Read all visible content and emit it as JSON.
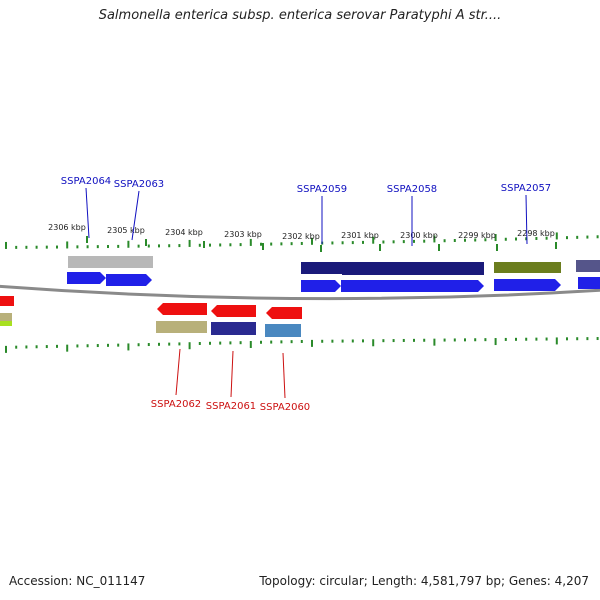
{
  "title": "Salmonella enterica subsp. enterica serovar Paratyphi A str....",
  "footer": {
    "accession": "Accession: NC_011147",
    "topology": "Topology: circular; Length: 4,581,797 bp; Genes: 4,207"
  },
  "colors": {
    "forward_label": "#1010c0",
    "reverse_label": "#cc1010",
    "tick": "#2a8a2a",
    "backbone": "#8a8a8a"
  },
  "ticks": [
    "2306 kbp",
    "2305 kbp",
    "2304 kbp",
    "2303 kbp",
    "2302 kbp",
    "2301 kbp",
    "2300 kbp",
    "2299 kbp",
    "2298 kbp"
  ],
  "forward_genes": [
    {
      "label": "SSPA2064",
      "color": "#2020e8"
    },
    {
      "label": "SSPA2063",
      "color": "#2020e8"
    },
    {
      "label": "SSPA2059",
      "color": "#2020e8"
    },
    {
      "label": "SSPA2058",
      "color": "#2020e8"
    },
    {
      "label": "SSPA2057",
      "color": "#2020e8"
    }
  ],
  "reverse_genes": [
    {
      "label": "SSPA2062",
      "color": "#ee1010"
    },
    {
      "label": "SSPA2061",
      "color": "#ee1010"
    },
    {
      "label": "SSPA2060",
      "color": "#ee1010"
    }
  ],
  "cog_bars_top": [
    {
      "color": "#b8b8b8"
    },
    {
      "color": "#1a1a7a"
    },
    {
      "color": "#1a1a7a"
    },
    {
      "color": "#6b7d1e"
    },
    {
      "color": "#55558a"
    }
  ],
  "cog_bars_bottom": [
    {
      "color": "#b8b07a"
    },
    {
      "color": "#2a2a90"
    },
    {
      "color": "#4a88c0"
    }
  ]
}
